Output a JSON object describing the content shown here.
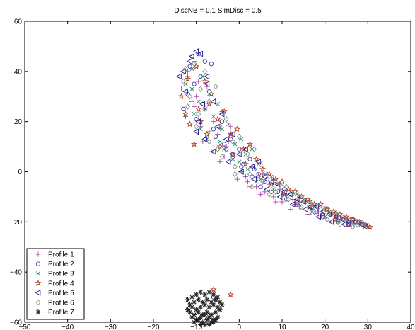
{
  "chart_data": {
    "type": "scatter",
    "title": "DiscNB = 0.1  SimDisc = 0.5",
    "xlabel": "",
    "ylabel": "",
    "xlim": [
      -50,
      40
    ],
    "ylim": [
      -60,
      60
    ],
    "xticks": [
      -50,
      -40,
      -30,
      -20,
      -10,
      0,
      10,
      20,
      30,
      40
    ],
    "yticks": [
      -60,
      -40,
      -20,
      0,
      20,
      40,
      60
    ],
    "xtick_labels": [
      "−50",
      "−40",
      "−30",
      "−20",
      "−10",
      "0",
      "10",
      "20",
      "30",
      "40"
    ],
    "ytick_labels": [
      "−60",
      "−40",
      "−20",
      "0",
      "20",
      "40",
      "60"
    ],
    "grid": false,
    "legend_position": "bottom-left",
    "series": [
      {
        "name": "Profile 1",
        "marker": "plus",
        "color": "#a64ca6",
        "x": [
          -13.5,
          -12.0,
          -10.5,
          -11.0,
          -9.5,
          -12.5,
          -10.0,
          -8.0,
          -9.0,
          -7.5,
          -6.0,
          -8.5,
          -5.0,
          -4.0,
          -6.5,
          -3.0,
          -2.0,
          -4.5,
          -1.0,
          0.5,
          -2.5,
          1.5,
          3.0,
          2.0,
          4.0,
          5.5,
          7.0,
          6.0,
          8.0,
          9.5,
          11.0,
          10.0,
          12.5,
          14.0,
          13.0,
          15.5,
          17.0,
          16.0,
          18.5,
          20.0,
          19.0,
          21.5,
          23.0,
          22.0,
          24.5,
          26.0,
          25.0,
          27.5,
          29.0,
          28.0,
          -12.0,
          -10.5,
          -7.0,
          -3.5,
          -0.5,
          2.5,
          5.0,
          8.5,
          12.0,
          16.5
        ],
        "y": [
          33,
          40,
          44,
          28,
          36,
          22,
          30,
          25,
          18,
          34,
          20,
          12,
          15,
          24,
          8,
          10,
          18,
          4,
          6,
          0,
          12,
          -2,
          2,
          -4,
          -6,
          -1,
          -5,
          -8,
          -10,
          -7,
          -9,
          -12,
          -11,
          -14,
          -13,
          -12,
          -15,
          -17,
          -16,
          -14,
          -18,
          -17,
          -19,
          -20,
          -18,
          -21,
          -19,
          -20,
          -22,
          -21,
          38,
          26,
          16,
          6,
          -3,
          -6,
          -9,
          -12,
          -15,
          -17
        ]
      },
      {
        "name": "Profile 2",
        "marker": "circle",
        "color": "#3a3aaa",
        "x": [
          -13.0,
          -11.5,
          -9.0,
          -8.0,
          -10.0,
          -6.5,
          -7.0,
          -5.5,
          -12.0,
          -4.0,
          -3.5,
          -2.0,
          -1.5,
          0.0,
          1.0,
          2.5,
          4.5,
          3.5,
          6.5,
          5.0,
          8.5,
          7.5,
          10.5,
          12.0,
          11.0,
          14.5,
          13.5,
          16.5,
          18.0,
          17.0,
          20.5,
          19.5,
          22.5,
          24.0,
          23.0,
          26.5,
          25.5,
          28.5,
          -10.5,
          -8.5,
          -6.0,
          -3.0,
          0.5,
          3.0,
          6.0,
          9.0,
          -6.0,
          -5.5,
          -11.0,
          -9.5
        ],
        "y": [
          25,
          42,
          38,
          44,
          21,
          43,
          32,
          14,
          31,
          20,
          11,
          13,
          7,
          9,
          3,
          5,
          -1,
          1,
          -3,
          -6,
          -5,
          -8,
          -7,
          -9,
          -11,
          -10,
          -13,
          -12,
          -16,
          -14,
          -15,
          -18,
          -17,
          -18,
          -20,
          -19,
          -21,
          -20,
          35,
          27,
          17,
          9,
          2,
          -2,
          -4,
          -8,
          -50,
          -51,
          46,
          47
        ]
      },
      {
        "name": "Profile 3",
        "marker": "x",
        "color": "#1e8a6a",
        "x": [
          -12.5,
          -11.0,
          -9.5,
          -10.5,
          -8.5,
          -7.0,
          -9.0,
          -6.0,
          -5.0,
          -7.5,
          -4.0,
          -2.5,
          -3.5,
          -1.0,
          0.5,
          -1.5,
          1.5,
          3.0,
          2.0,
          4.5,
          6.0,
          5.0,
          7.5,
          9.0,
          8.0,
          10.5,
          12.0,
          11.0,
          13.5,
          15.0,
          14.0,
          16.5,
          18.0,
          17.0,
          19.5,
          21.0,
          20.0,
          22.5,
          24.0,
          23.0,
          25.5,
          27.0,
          26.0,
          28.5,
          30.0,
          -11.0,
          -8.0,
          -4.5,
          0.0,
          4.0
        ],
        "y": [
          35,
          41,
          28,
          23,
          38,
          31,
          17,
          22,
          27,
          13,
          17,
          19,
          9,
          11,
          13,
          5,
          7,
          9,
          1,
          3,
          -1,
          -3,
          -2,
          -5,
          -7,
          -6,
          -8,
          -10,
          -9,
          -11,
          -13,
          -12,
          -14,
          -16,
          -15,
          -16,
          -18,
          -17,
          -19,
          -20,
          -19,
          -21,
          -20,
          -21,
          -22,
          33,
          25,
          12,
          4,
          -4
        ]
      },
      {
        "name": "Profile 4",
        "marker": "star",
        "color": "#b23a1a",
        "x": [
          -13.5,
          -12.0,
          -10.0,
          -11.5,
          -8.0,
          -9.5,
          -6.5,
          -7.5,
          -5.0,
          -3.5,
          -4.5,
          -2.0,
          -0.5,
          -1.5,
          1.0,
          2.5,
          1.5,
          4.0,
          5.5,
          4.5,
          7.0,
          8.5,
          7.5,
          10.0,
          11.5,
          10.5,
          13.0,
          14.5,
          13.5,
          16.0,
          17.5,
          16.5,
          19.0,
          20.5,
          19.5,
          22.0,
          23.5,
          22.5,
          25.0,
          26.5,
          25.5,
          28.0,
          29.5,
          30.5,
          -6.0,
          -2.0,
          -10.5,
          -12.5,
          -7.0,
          -9.0
        ],
        "y": [
          30,
          37,
          42,
          19,
          36,
          25,
          31,
          15,
          21,
          24,
          10,
          15,
          17,
          7,
          9,
          11,
          3,
          5,
          1,
          -2,
          -1,
          -3,
          -5,
          -4,
          -7,
          -9,
          -8,
          -10,
          -12,
          -11,
          -13,
          -14,
          -13,
          -15,
          -17,
          -16,
          -17,
          -19,
          -18,
          -19,
          -21,
          -20,
          -21,
          -22,
          -47,
          -49,
          11,
          23,
          27,
          20
        ]
      },
      {
        "name": "Profile 5",
        "marker": "triangle-left",
        "color": "#1a1a8a",
        "x": [
          -13.0,
          -12.5,
          -11.0,
          -10.0,
          -8.5,
          -9.5,
          -7.5,
          -6.0,
          -8.0,
          -5.0,
          -4.0,
          -6.0,
          -3.0,
          -1.5,
          -2.5,
          0.0,
          1.5,
          0.5,
          3.0,
          4.5,
          3.5,
          6.0,
          7.5,
          6.5,
          9.0,
          10.5,
          9.5,
          12.0,
          13.5,
          12.5,
          15.0,
          16.5,
          15.5,
          18.0,
          19.5,
          18.5,
          21.0,
          22.5,
          21.5,
          24.0,
          25.5,
          24.5,
          27.0,
          28.5,
          29.5,
          -14.0,
          -11.5,
          -9.0,
          -10.0,
          -7.5
        ],
        "y": [
          40,
          32,
          46,
          48,
          27,
          20,
          38,
          28,
          13,
          18,
          23,
          8,
          13,
          15,
          4,
          7,
          9,
          0,
          2,
          4,
          -3,
          -2,
          -4,
          -7,
          -5,
          -8,
          -10,
          -9,
          -11,
          -13,
          -12,
          -14,
          -15,
          -14,
          -16,
          -18,
          -17,
          -18,
          -20,
          -19,
          -20,
          -21,
          -20,
          -21,
          -22,
          38,
          44,
          47,
          16,
          35
        ]
      },
      {
        "name": "Profile 6",
        "marker": "diamond",
        "color": "#8a8a8a",
        "x": [
          -13.0,
          -11.5,
          -10.5,
          -12.0,
          -9.0,
          -8.0,
          -10.0,
          -7.0,
          -5.5,
          -7.0,
          -4.5,
          -3.0,
          -4.0,
          -1.5,
          0.0,
          -1.0,
          2.0,
          3.5,
          2.5,
          5.0,
          6.5,
          5.5,
          8.0,
          9.5,
          8.5,
          11.0,
          12.5,
          11.5,
          14.0,
          15.5,
          14.5,
          17.0,
          18.5,
          17.5,
          20.0,
          21.5,
          20.5,
          23.0,
          24.5,
          23.5,
          26.0,
          27.5,
          26.5,
          29.0,
          -12.5,
          -9.5,
          -5.0,
          -1.0,
          3.0,
          7.0
        ],
        "y": [
          36,
          30,
          43,
          26,
          33,
          40,
          18,
          28,
          34,
          12,
          18,
          21,
          6,
          12,
          14,
          2,
          7,
          9,
          -1,
          3,
          -1,
          -4,
          -3,
          -5,
          -8,
          -6,
          -9,
          -11,
          -10,
          -12,
          -14,
          -13,
          -14,
          -16,
          -15,
          -17,
          -19,
          -18,
          -19,
          -21,
          -20,
          -21,
          -22,
          -21,
          41,
          23,
          9,
          -1,
          -6,
          -9
        ]
      },
      {
        "name": "Profile 7",
        "marker": "asterisk",
        "color": "#222222",
        "x": [
          -12.0,
          -11.0,
          -10.0,
          -9.0,
          -8.0,
          -7.0,
          -6.0,
          -5.0,
          -11.5,
          -10.5,
          -9.5,
          -8.5,
          -7.5,
          -6.5,
          -5.5,
          -4.5,
          -12.0,
          -11.0,
          -10.0,
          -9.0,
          -8.0,
          -7.0,
          -6.0,
          -5.0,
          -4.0,
          -11.5,
          -10.5,
          -9.5,
          -8.5,
          -7.5,
          -6.5,
          -5.5,
          -4.5,
          -11.0,
          -10.0,
          -9.0,
          -8.0,
          -7.0,
          -6.0,
          -5.0,
          -10.5,
          -9.5,
          -8.5,
          -7.5,
          -6.5,
          -5.5,
          -9.0,
          -8.0,
          -7.0,
          -6.0
        ],
        "y": [
          -51,
          -50,
          -49,
          -48,
          -49,
          -48,
          -49,
          -50,
          -53,
          -52,
          -51,
          -52,
          -51,
          -52,
          -51,
          -52,
          -55,
          -54,
          -55,
          -54,
          -53,
          -54,
          -53,
          -54,
          -53,
          -56,
          -57,
          -56,
          -57,
          -56,
          -57,
          -56,
          -55,
          -58,
          -59,
          -58,
          -57,
          -58,
          -59,
          -58,
          -60,
          -59,
          -60,
          -59,
          -60,
          -59,
          -61,
          -61,
          -61,
          -60
        ]
      }
    ]
  }
}
